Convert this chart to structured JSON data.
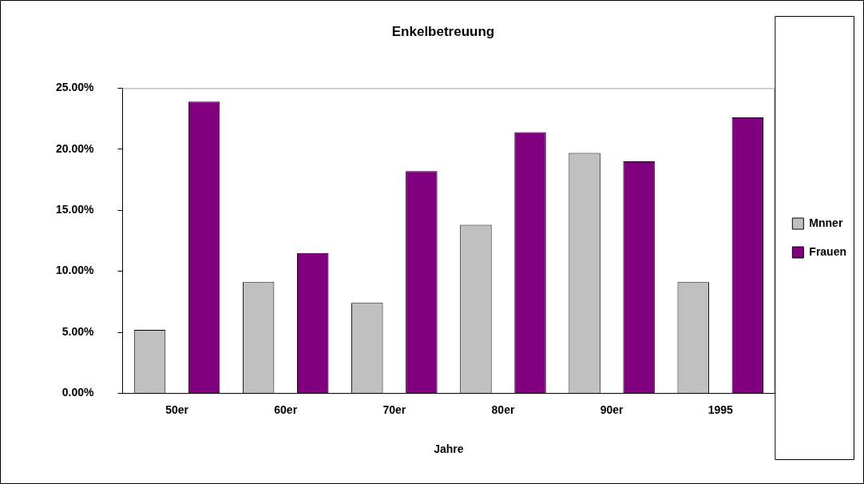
{
  "chart_data": {
    "type": "bar",
    "title": "Enkelbetreuung",
    "xlabel": "Jahre",
    "categories": [
      "50er",
      "60er",
      "70er",
      "80er",
      "90er",
      "1995"
    ],
    "series": [
      {
        "name": "Mnner",
        "color": "#c0c0c0",
        "values": [
          5.2,
          9.1,
          7.4,
          13.8,
          19.7,
          9.1
        ]
      },
      {
        "name": "Frauen",
        "color": "#800080",
        "values": [
          23.9,
          11.5,
          18.2,
          21.4,
          19.0,
          22.6
        ]
      }
    ],
    "ylim": [
      0,
      25
    ],
    "yticks": [
      {
        "value": 0,
        "label": "0.00%"
      },
      {
        "value": 5,
        "label": "5.00%"
      },
      {
        "value": 10,
        "label": "10.00%"
      },
      {
        "value": 15,
        "label": "15.00%"
      },
      {
        "value": 20,
        "label": "20.00%"
      },
      {
        "value": 25,
        "label": "25.00%"
      }
    ],
    "grid": false,
    "legend": "right"
  }
}
